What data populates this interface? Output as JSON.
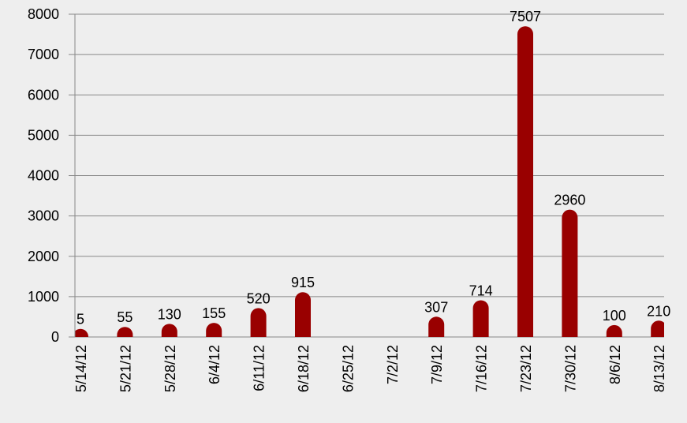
{
  "chart_data": {
    "type": "bar",
    "categories": [
      "5/14/12",
      "5/21/12",
      "5/28/12",
      "6/4/12",
      "6/11/12",
      "6/18/12",
      "6/25/12",
      "7/2/12",
      "7/9/12",
      "7/16/12",
      "7/23/12",
      "7/30/12",
      "8/6/12",
      "8/13/12"
    ],
    "values": [
      5,
      55,
      130,
      155,
      520,
      915,
      null,
      null,
      307,
      714,
      7507,
      2960,
      100,
      210
    ],
    "color": "#990000",
    "ylim": [
      0,
      8000
    ],
    "yticks": [
      0,
      1000,
      2000,
      3000,
      4000,
      5000,
      6000,
      7000,
      8000
    ],
    "grid": true
  }
}
